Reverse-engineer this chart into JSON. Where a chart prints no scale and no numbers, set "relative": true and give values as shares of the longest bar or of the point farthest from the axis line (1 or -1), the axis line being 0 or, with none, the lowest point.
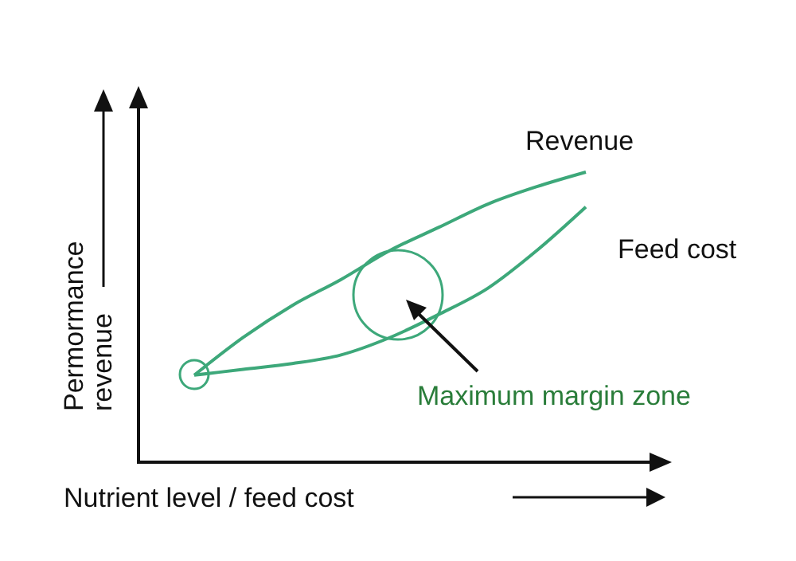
{
  "chart_data": {
    "type": "line",
    "relative": true,
    "xlabel": "Nutrient level / feed cost",
    "ylabel": "Permormance revenue",
    "categories": [
      null,
      null,
      null,
      null,
      null,
      null,
      null,
      null,
      null
    ],
    "series": [
      {
        "name": "Revenue",
        "color": "#3da87a",
        "values": [
          0.3,
          0.43,
          0.54,
          0.63,
          0.73,
          0.81,
          0.89,
          0.95,
          1
        ]
      },
      {
        "name": "Feed cost",
        "color": "#3da87a",
        "values": [
          0.3,
          0.32,
          0.34,
          0.37,
          0.43,
          0.51,
          0.6,
          0.73,
          0.88
        ]
      }
    ],
    "annotations": [
      "Maximum margin zone"
    ],
    "marker": "none",
    "line_style": "solid",
    "legend": false,
    "grid": false
  }
}
